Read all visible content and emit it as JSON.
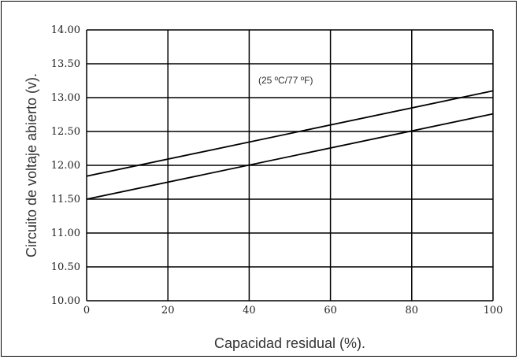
{
  "chart_data": {
    "type": "line",
    "annotation": "(25 ºC/77 ºF)",
    "xlabel": "Capacidad residual (%).",
    "ylabel": "Circuito de voltaje abierto (v).",
    "xlim": [
      0,
      100
    ],
    "ylim": [
      10.0,
      14.0
    ],
    "x_ticks": [
      "0",
      "20",
      "40",
      "60",
      "80",
      "100"
    ],
    "y_ticks": [
      "10.00",
      "10.50",
      "11.00",
      "11.50",
      "12.00",
      "12.50",
      "13.00",
      "13.50",
      "14.00"
    ],
    "grid": true,
    "series": [
      {
        "x": [
          0,
          100
        ],
        "y": [
          11.84,
          13.1
        ]
      },
      {
        "x": [
          0,
          100
        ],
        "y": [
          11.5,
          12.76
        ]
      }
    ]
  }
}
